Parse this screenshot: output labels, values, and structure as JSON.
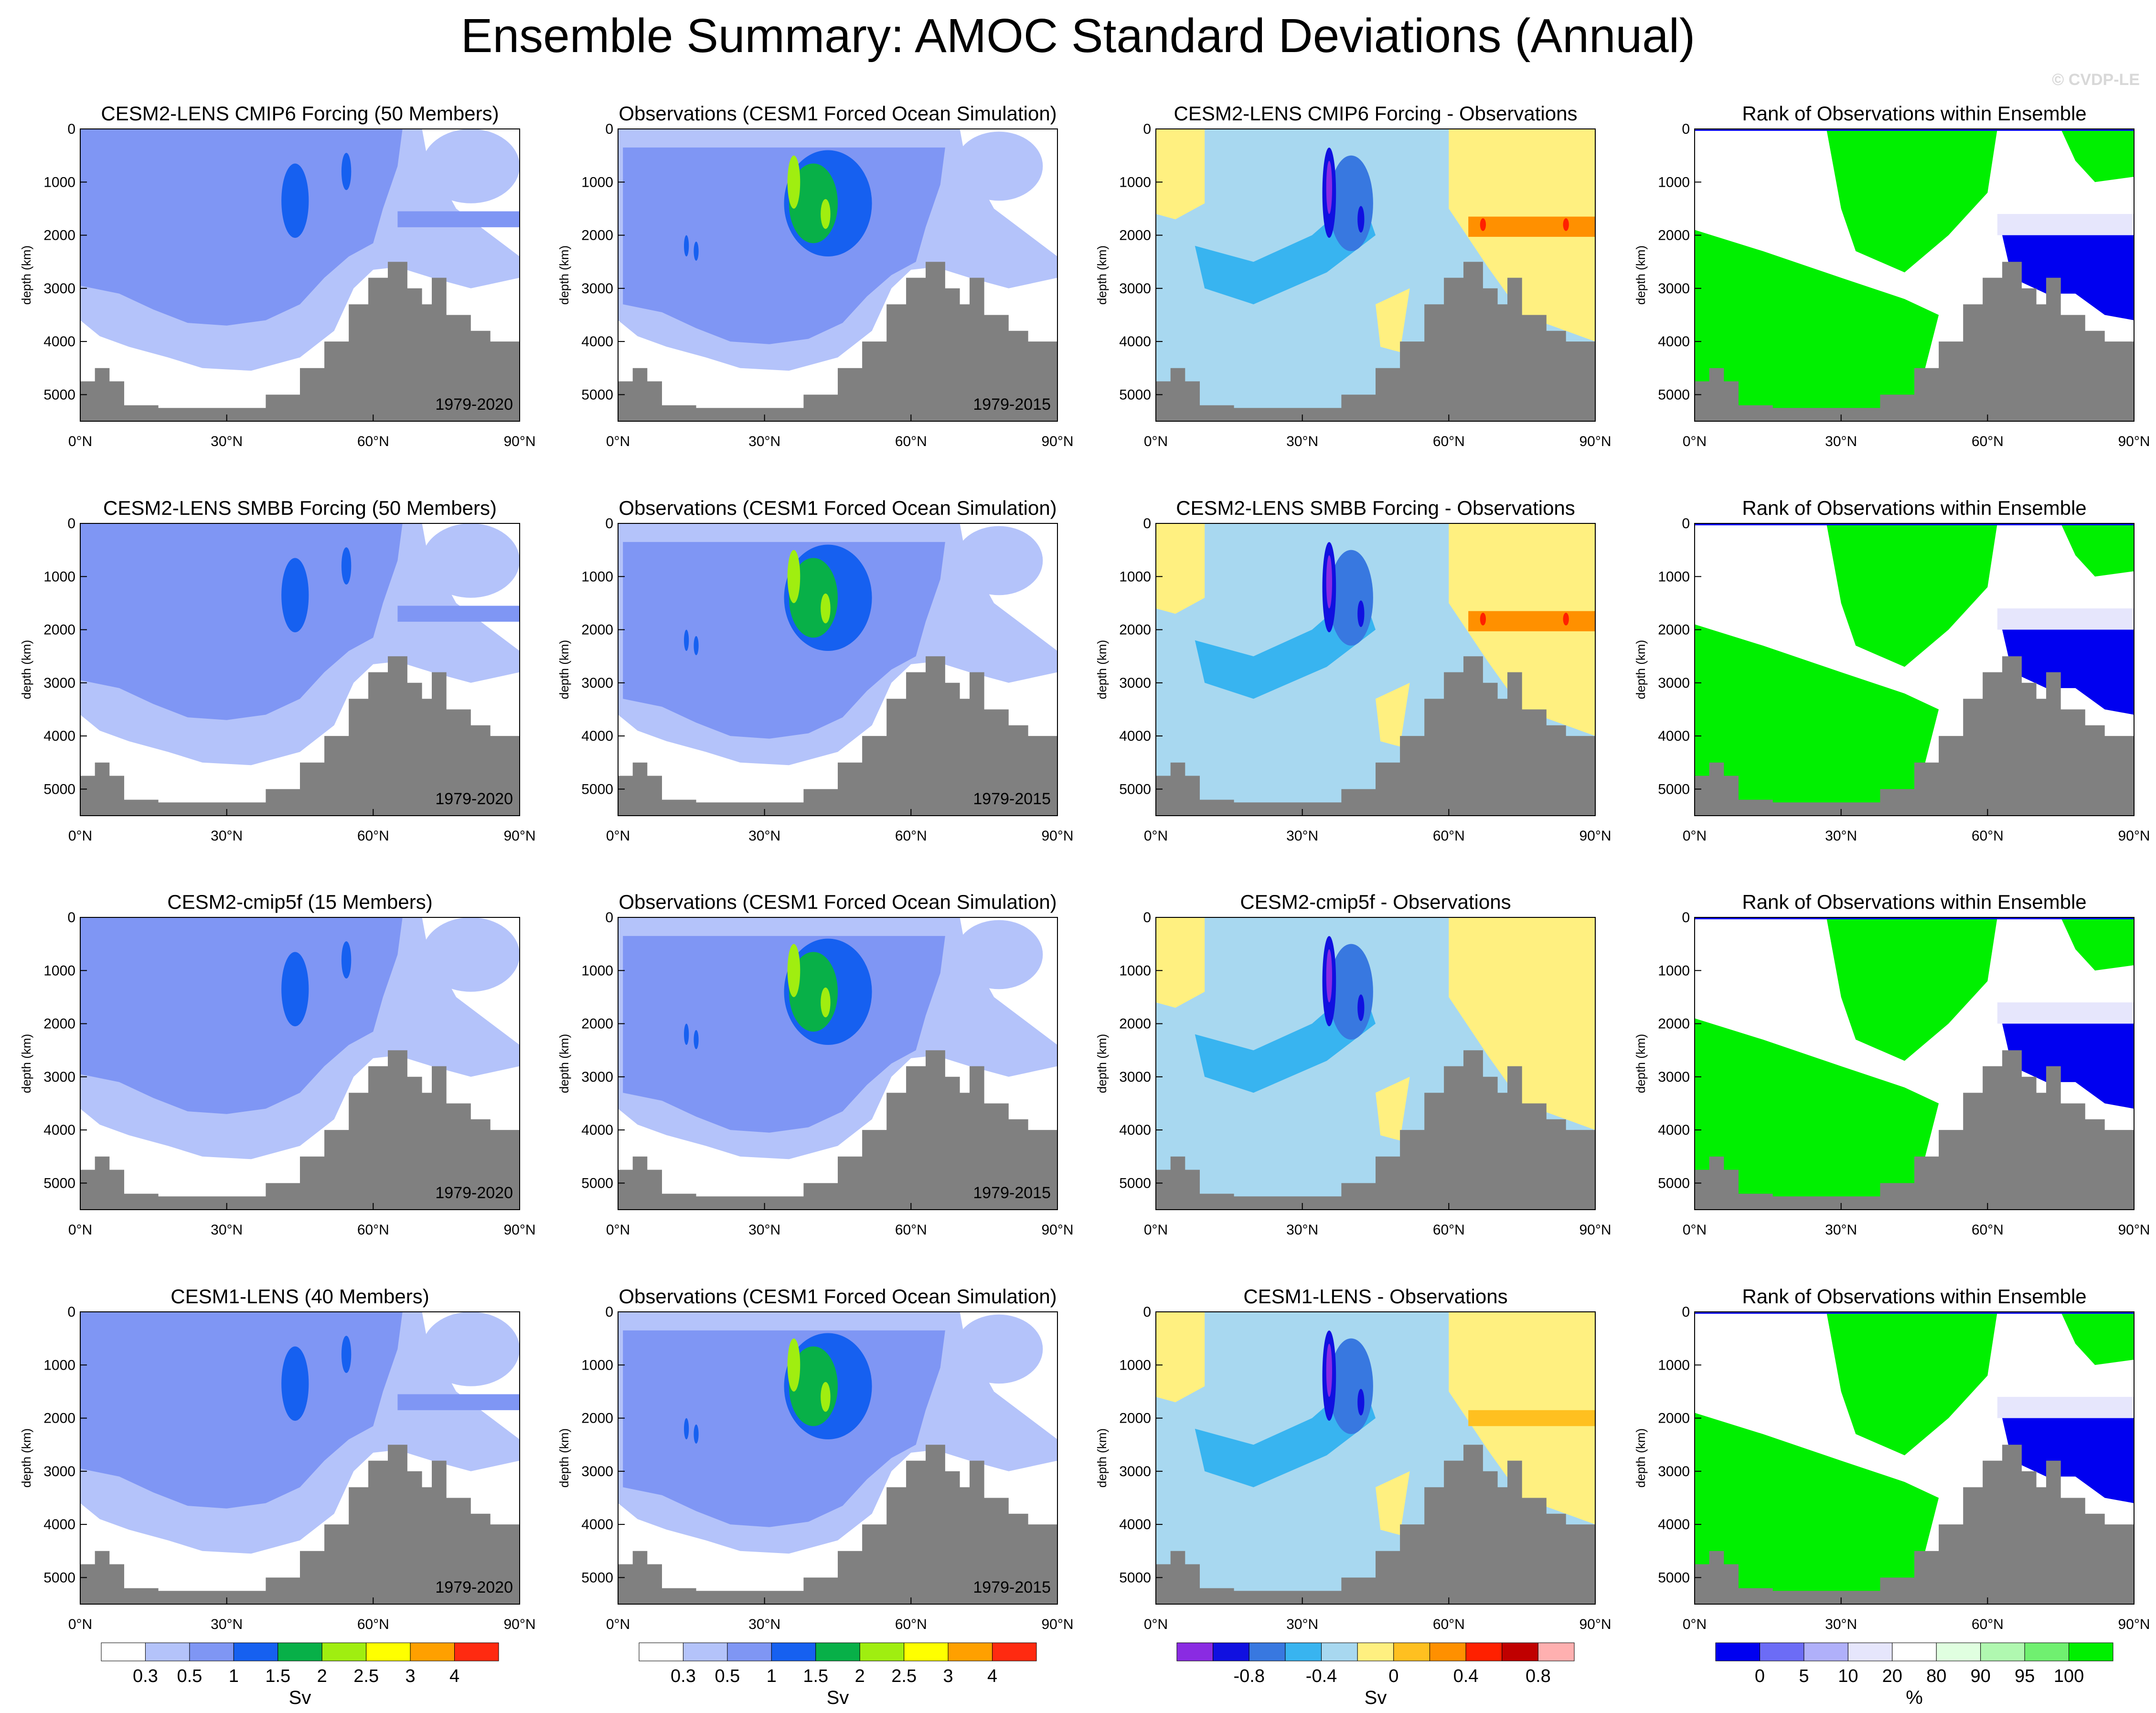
{
  "title": "Ensemble Summary: AMOC Standard Deviations (Annual)",
  "credit": "© CVDP-LE",
  "axes": {
    "ylabel": "depth (km)",
    "yticks": [
      "0",
      "1000",
      "2000",
      "3000",
      "4000",
      "5000"
    ],
    "yticks_values": [
      0,
      1000,
      2000,
      3000,
      4000,
      5000
    ],
    "xticks": [
      "0°N",
      "30°N",
      "60°N",
      "90°N"
    ],
    "xticks_values": [
      0,
      30,
      60,
      90
    ],
    "ylim": [
      0,
      5500
    ],
    "xlim": [
      0,
      90
    ]
  },
  "chart_data": [
    {
      "type": "heatmap",
      "row": 0,
      "col": 0,
      "title": "CESM2-LENS CMIP6 Forcing (50 Members)",
      "period": "1979-2020",
      "field": "std"
    },
    {
      "type": "heatmap",
      "row": 0,
      "col": 1,
      "title": "Observations (CESM1 Forced Ocean Simulation)",
      "period": "1979-2015",
      "field": "obs"
    },
    {
      "type": "heatmap",
      "row": 0,
      "col": 2,
      "title": "CESM2-LENS CMIP6 Forcing - Observations",
      "period": "",
      "field": "diff"
    },
    {
      "type": "heatmap",
      "row": 0,
      "col": 3,
      "title": "Rank of Observations within Ensemble",
      "period": "",
      "field": "rank"
    },
    {
      "type": "heatmap",
      "row": 1,
      "col": 0,
      "title": "CESM2-LENS SMBB Forcing (50 Members)",
      "period": "1979-2020",
      "field": "std"
    },
    {
      "type": "heatmap",
      "row": 1,
      "col": 1,
      "title": "Observations (CESM1 Forced Ocean Simulation)",
      "period": "1979-2015",
      "field": "obs"
    },
    {
      "type": "heatmap",
      "row": 1,
      "col": 2,
      "title": "CESM2-LENS SMBB Forcing - Observations",
      "period": "",
      "field": "diff"
    },
    {
      "type": "heatmap",
      "row": 1,
      "col": 3,
      "title": "Rank of Observations within Ensemble",
      "period": "",
      "field": "rank"
    },
    {
      "type": "heatmap",
      "row": 2,
      "col": 0,
      "title": "CESM2-cmip5f (15 Members)",
      "period": "1979-2020",
      "field": "std"
    },
    {
      "type": "heatmap",
      "row": 2,
      "col": 1,
      "title": "Observations (CESM1 Forced Ocean Simulation)",
      "period": "1979-2015",
      "field": "obs"
    },
    {
      "type": "heatmap",
      "row": 2,
      "col": 2,
      "title": "CESM2-cmip5f - Observations",
      "period": "",
      "field": "diff"
    },
    {
      "type": "heatmap",
      "row": 2,
      "col": 3,
      "title": "Rank of Observations within Ensemble",
      "period": "",
      "field": "rank"
    },
    {
      "type": "heatmap",
      "row": 3,
      "col": 0,
      "title": "CESM1-LENS (40 Members)",
      "period": "1979-2020",
      "field": "std"
    },
    {
      "type": "heatmap",
      "row": 3,
      "col": 1,
      "title": "Observations (CESM1 Forced Ocean Simulation)",
      "period": "1979-2015",
      "field": "obs"
    },
    {
      "type": "heatmap",
      "row": 3,
      "col": 2,
      "title": "CESM1-LENS - Observations",
      "period": "",
      "field": "diff"
    },
    {
      "type": "heatmap",
      "row": 3,
      "col": 3,
      "title": "Rank of Observations within Ensemble",
      "period": "",
      "field": "rank"
    }
  ],
  "colorbars": [
    {
      "col": 0,
      "unit": "Sv",
      "labels": [
        "0.3",
        "0.5",
        "1",
        "1.5",
        "2",
        "2.5",
        "3",
        "4"
      ],
      "colors": [
        "#ffffff",
        "#b4c3fa",
        "#7f96f4",
        "#1660f0",
        "#08b048",
        "#a0ee10",
        "#ffff00",
        "#ffa000",
        "#ff2a10"
      ]
    },
    {
      "col": 1,
      "unit": "Sv",
      "labels": [
        "0.3",
        "0.5",
        "1",
        "1.5",
        "2",
        "2.5",
        "3",
        "4"
      ],
      "colors": [
        "#ffffff",
        "#b4c3fa",
        "#7f96f4",
        "#1660f0",
        "#08b048",
        "#a0ee10",
        "#ffff00",
        "#ffa000",
        "#ff2a10"
      ]
    },
    {
      "col": 2,
      "unit": "Sv",
      "labels": [
        "-0.8",
        "-0.4",
        "0",
        "0.4",
        "0.8"
      ],
      "label_slots": [
        2,
        4,
        6,
        8,
        10
      ],
      "colors": [
        "#8a2be2",
        "#1010e0",
        "#3878e0",
        "#38b4f0",
        "#a8d8f0",
        "#fff080",
        "#ffc020",
        "#ff9000",
        "#ff2000",
        "#c00000",
        "#ffb0b0"
      ]
    },
    {
      "col": 3,
      "unit": "%",
      "labels": [
        "0",
        "5",
        "10",
        "20",
        "80",
        "90",
        "95",
        "100"
      ],
      "label_slots": [
        1,
        2,
        3,
        4,
        5,
        6,
        7,
        8
      ],
      "colors": [
        "#0000f0",
        "#6c6cf6",
        "#b0b0fa",
        "#e6e6fc",
        "#ffffff",
        "#e0ffe0",
        "#b0f8b0",
        "#70f070",
        "#00f000"
      ]
    }
  ],
  "fill_colors": {
    "terrain": "#808080",
    "std_light": "#b4c3fa",
    "std_mid": "#7f96f4",
    "std_high": "#1660f0",
    "std_green": "#08b048",
    "std_lime": "#a0ee10",
    "diff_pos": "#fff080",
    "diff_neg_light": "#a8d8f0",
    "diff_neg": "#38b4f0",
    "diff_neg_strong": "#3878e0",
    "diff_neg_deep": "#1010e0",
    "diff_neg_purple": "#8a2be2",
    "diff_orange": "#ff9000",
    "diff_red": "#ff2000",
    "rank_green": "#00f000",
    "rank_blue": "#0000f0",
    "rank_lavender": "#e6e6fc"
  }
}
